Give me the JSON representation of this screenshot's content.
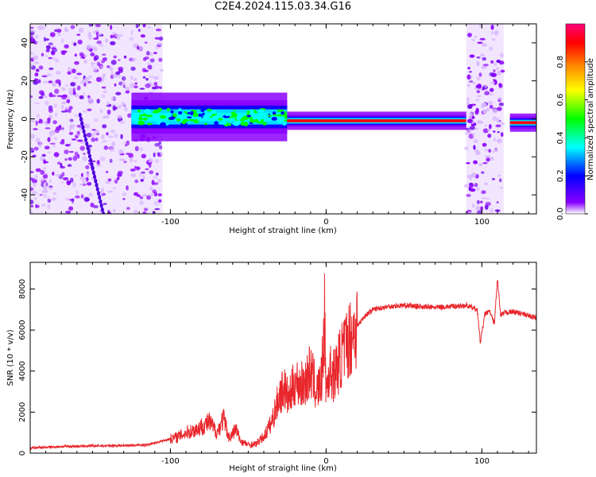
{
  "title": "C2E4.2024.115.03.34.G16",
  "colors": {
    "snr_line": "#e8262b",
    "colormap": [
      "#ffffff",
      "#8a00ff",
      "#0000ff",
      "#00ffff",
      "#00ff00",
      "#ffff00",
      "#ff8800",
      "#ff0000",
      "#ff0077"
    ]
  },
  "chart_data": [
    {
      "type": "heatmap",
      "title": "",
      "xlabel": "Height of straight line (km)",
      "ylabel": "Frequency (Hz)",
      "xlim": [
        -190,
        135
      ],
      "ylim": [
        -50,
        50
      ],
      "x_ticks": [
        -100,
        0,
        100
      ],
      "y_ticks": [
        40,
        20,
        0,
        -20,
        -40
      ],
      "colorbar": {
        "label": "Normalized spectral amplitude",
        "range": [
          0.0,
          1.0
        ],
        "ticks": [
          0.0,
          0.2,
          0.4,
          0.6,
          0.8
        ]
      },
      "features": [
        {
          "name": "noise-left",
          "x_range": [
            -190,
            -105
          ],
          "y_range": [
            -50,
            50
          ],
          "amplitude": 0.08
        },
        {
          "name": "signal-band",
          "x_range": [
            -125,
            -25
          ],
          "center_y": 1,
          "half_width": 4,
          "amplitude": 0.35
        },
        {
          "name": "signal-band",
          "x_range": [
            -25,
            90
          ],
          "center_y": -1,
          "half_width": 1.5,
          "amplitude": 0.9
        },
        {
          "name": "noise-right",
          "x_range": [
            90,
            114
          ],
          "y_range": [
            -50,
            50
          ],
          "amplitude": 0.1
        },
        {
          "name": "signal-band",
          "x_range": [
            118,
            135
          ],
          "center_y": -2,
          "half_width": 1.5,
          "amplitude": 0.9
        },
        {
          "name": "diagonal-streak",
          "x_from": -158,
          "y_from": 2,
          "x_to": -143,
          "y_to": -50,
          "amplitude": 0.1
        }
      ]
    },
    {
      "type": "line",
      "title": "",
      "xlabel": "Height of straight line (km)",
      "ylabel": "SNR (10 * v/v)",
      "xlim": [
        -190,
        135
      ],
      "ylim": [
        0,
        9300
      ],
      "x_ticks": [
        -100,
        0,
        100
      ],
      "y_ticks": [
        0,
        2000,
        4000,
        6000,
        8000
      ],
      "series": [
        {
          "x": [
            -190,
            -170,
            -150,
            -130,
            -115,
            -105,
            -95,
            -90,
            -85,
            -80,
            -75,
            -70,
            -66,
            -62,
            -58,
            -55,
            -50,
            -45,
            -40,
            -35,
            -30,
            -27,
            -24,
            -20,
            -15,
            -10,
            -6,
            -3,
            -1,
            0,
            2,
            5,
            10,
            15,
            20,
            25,
            30,
            40,
            50,
            60,
            70,
            80,
            90,
            97,
            99,
            102,
            105,
            108,
            110,
            112,
            115,
            120,
            125,
            130,
            135
          ],
          "y": [
            250,
            320,
            350,
            370,
            400,
            600,
            800,
            1000,
            1100,
            1300,
            1500,
            1000,
            1700,
            700,
            1200,
            600,
            400,
            450,
            800,
            1500,
            2800,
            3200,
            2600,
            3500,
            3300,
            4000,
            3000,
            3500,
            6500,
            3000,
            4000,
            3800,
            4800,
            5600,
            6200,
            6700,
            7000,
            7150,
            7200,
            7150,
            7100,
            7150,
            7200,
            7000,
            5400,
            6800,
            6900,
            6300,
            8500,
            6700,
            6850,
            6900,
            6800,
            6700,
            6600
          ]
        }
      ]
    }
  ]
}
